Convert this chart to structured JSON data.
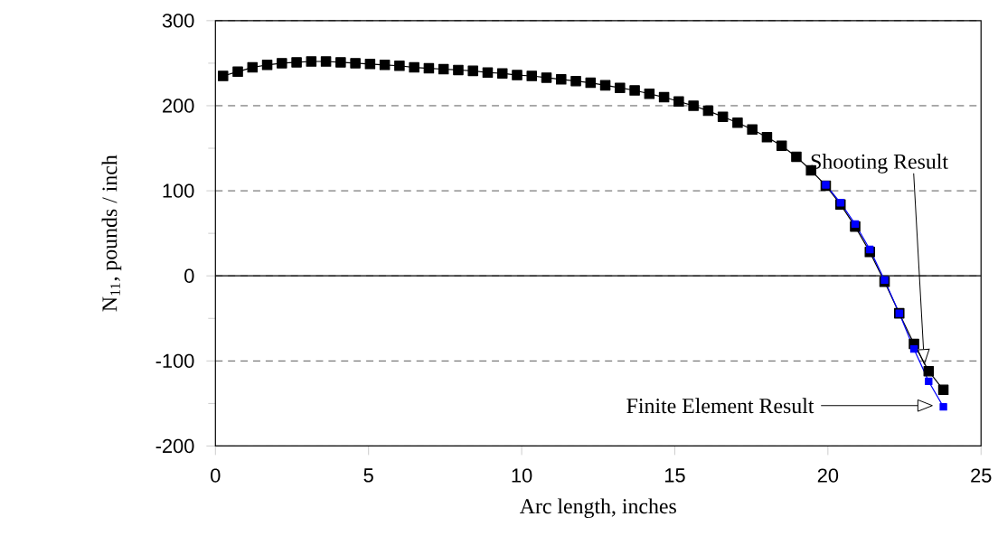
{
  "chart_data": {
    "type": "line",
    "xlabel": "Arc length, inches",
    "ylabel": "N$_{11}$, pounds / inch",
    "x": [
      0.25,
      0.73,
      1.21,
      1.69,
      2.17,
      2.65,
      3.13,
      3.61,
      4.09,
      4.57,
      5.05,
      5.53,
      6.01,
      6.49,
      6.97,
      7.45,
      7.93,
      8.41,
      8.89,
      9.37,
      9.85,
      10.33,
      10.81,
      11.29,
      11.77,
      12.25,
      12.73,
      13.21,
      13.69,
      14.17,
      14.65,
      15.13,
      15.61,
      16.09,
      16.57,
      17.05,
      17.53,
      18.01,
      18.49,
      18.97,
      19.45,
      19.93,
      20.41,
      20.89,
      21.37,
      21.85,
      22.33,
      22.81,
      23.29,
      23.77
    ],
    "series": [
      {
        "color": "#0000ff",
        "values": [
          null,
          null,
          null,
          null,
          null,
          null,
          null,
          null,
          null,
          null,
          null,
          null,
          null,
          null,
          null,
          null,
          null,
          null,
          null,
          null,
          null,
          null,
          null,
          null,
          null,
          null,
          null,
          null,
          null,
          null,
          null,
          null,
          null,
          null,
          null,
          null,
          null,
          null,
          null,
          null,
          null,
          107,
          86,
          61,
          31,
          -5,
          -44,
          -86,
          -124,
          -154
        ]
      },
      {
        "color": "#000000",
        "values": [
          235,
          240,
          245,
          248,
          250,
          251,
          252,
          252,
          251,
          250,
          249,
          248,
          247,
          245,
          244,
          243,
          242,
          241,
          239,
          238,
          236,
          235,
          233,
          231,
          229,
          227,
          224,
          221,
          218,
          214,
          210,
          205,
          200,
          194,
          187,
          180,
          172,
          163,
          153,
          140,
          124,
          106,
          84,
          58,
          28,
          -7,
          -44,
          -80,
          -112,
          -134
        ]
      }
    ],
    "xlim": [
      0,
      25
    ],
    "xticks": [
      0,
      5,
      10,
      15,
      20,
      25
    ],
    "ylim": [
      -200,
      300
    ],
    "yticks": [
      -200,
      {
        "value": -150,
        "label": null
      },
      -100,
      {
        "value": -50,
        "label": null
      },
      0,
      {
        "value": 50,
        "label": null
      },
      100,
      {
        "value": 150,
        "label": null
      },
      200,
      {
        "value": 250,
        "label": null
      },
      300
    ],
    "grid": "y",
    "marker": "square",
    "line_style": "solid",
    "ref_lines": [
      {
        "axis": "y",
        "value": 0
      }
    ],
    "annotations": [
      "Shooting Result",
      "Finite Element Result"
    ]
  }
}
